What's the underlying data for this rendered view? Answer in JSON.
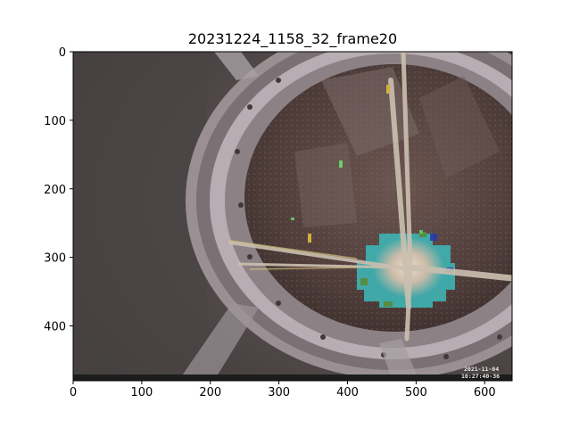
{
  "chart_data": {
    "type": "image",
    "title": "20231224_1158_32_frame20",
    "xlim": [
      0,
      640
    ],
    "ylim": [
      480,
      0
    ],
    "y_inverted": true,
    "x_ticks": [
      0,
      100,
      200,
      300,
      400,
      500,
      600
    ],
    "y_ticks": [
      0,
      100,
      200,
      300,
      400
    ],
    "x_tick_labels": [
      "0",
      "100",
      "200",
      "300",
      "400",
      "500",
      "600"
    ],
    "y_tick_labels": [
      "0",
      "100",
      "200",
      "300",
      "400"
    ],
    "grid": false,
    "image_overlay": {
      "timestamp_line1": "2021-11-04",
      "timestamp_line2": "10:27:40-36"
    }
  }
}
